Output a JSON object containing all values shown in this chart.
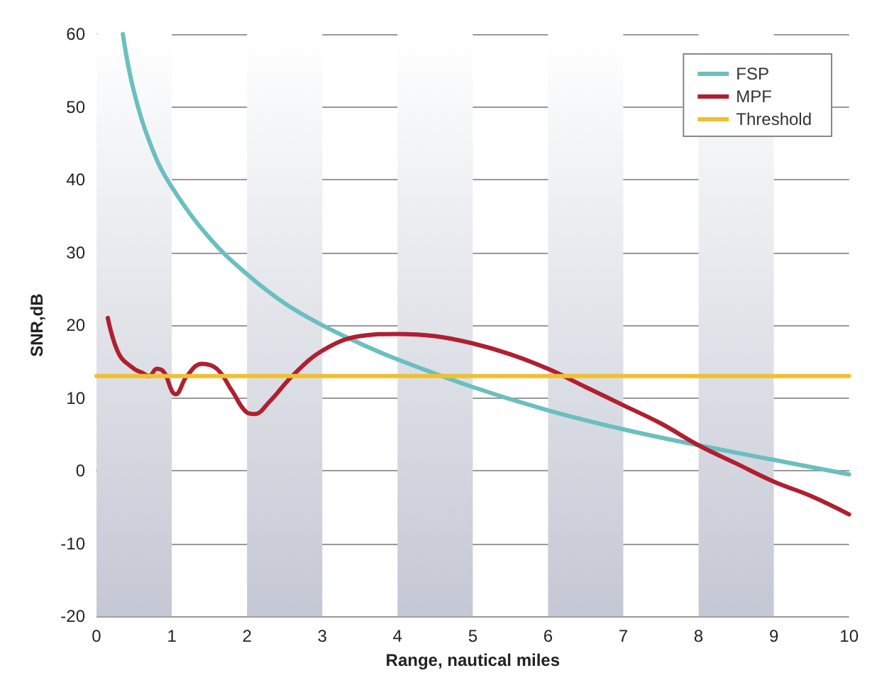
{
  "chart_data": {
    "type": "line",
    "xlabel": "Range, nautical miles",
    "ylabel": "SNR,dB",
    "xlim": [
      0,
      10
    ],
    "xticks": [
      0,
      1,
      2,
      3,
      4,
      5,
      6,
      7,
      8,
      9,
      10
    ],
    "ylim": [
      -20,
      60
    ],
    "yticks": [
      -20,
      -10,
      0,
      10,
      20,
      30,
      40,
      50,
      60
    ],
    "grid": "y",
    "legend": "top right",
    "marker": "none",
    "line_style": "solid",
    "bands": [
      {
        "axis": "x",
        "from": 0,
        "to": 1,
        "color": "#c4c8d4"
      },
      {
        "axis": "x",
        "from": 2,
        "to": 3,
        "color": "#c4c8d4"
      },
      {
        "axis": "x",
        "from": 4,
        "to": 5,
        "color": "#c4c8d4"
      },
      {
        "axis": "x",
        "from": 6,
        "to": 7,
        "color": "#c4c8d4"
      },
      {
        "axis": "x",
        "from": 8,
        "to": 9,
        "color": "#c4c8d4"
      }
    ],
    "series": [
      {
        "name": "FSP",
        "color": "#6bbfc0",
        "x": [
          0.35,
          0.5,
          0.75,
          1,
          1.5,
          2,
          2.5,
          3,
          3.5,
          4,
          5,
          6,
          7,
          8,
          9,
          10
        ],
        "values": [
          60,
          52,
          44,
          39,
          32,
          27,
          23,
          20,
          17.5,
          15.3,
          11.5,
          8.3,
          5.7,
          3.5,
          1.5,
          -0.5
        ]
      },
      {
        "name": "MPF",
        "color": "#b01f30",
        "x": [
          0.15,
          0.3,
          0.5,
          0.6,
          0.7,
          0.8,
          0.9,
          1.0,
          1.05,
          1.2,
          1.4,
          1.6,
          1.8,
          2.0,
          2.1,
          2.3,
          2.6,
          3.0,
          3.5,
          4,
          4.5,
          5,
          5.5,
          6,
          6.5,
          7,
          7.5,
          8,
          8.5,
          9,
          9.5,
          10
        ],
        "values": [
          21,
          16,
          14,
          13.5,
          13,
          14,
          13.5,
          11,
          10.5,
          13,
          14.7,
          14,
          11,
          8,
          7.8,
          9.5,
          13,
          16.5,
          18.5,
          18.8,
          18.5,
          17.5,
          16,
          14,
          11.5,
          9,
          6.5,
          3.5,
          1,
          -1.5,
          -3.5,
          -6
        ]
      },
      {
        "name": "Threshold",
        "color": "#f0c030",
        "x": [
          0,
          10
        ],
        "values": [
          13,
          13
        ]
      }
    ]
  }
}
